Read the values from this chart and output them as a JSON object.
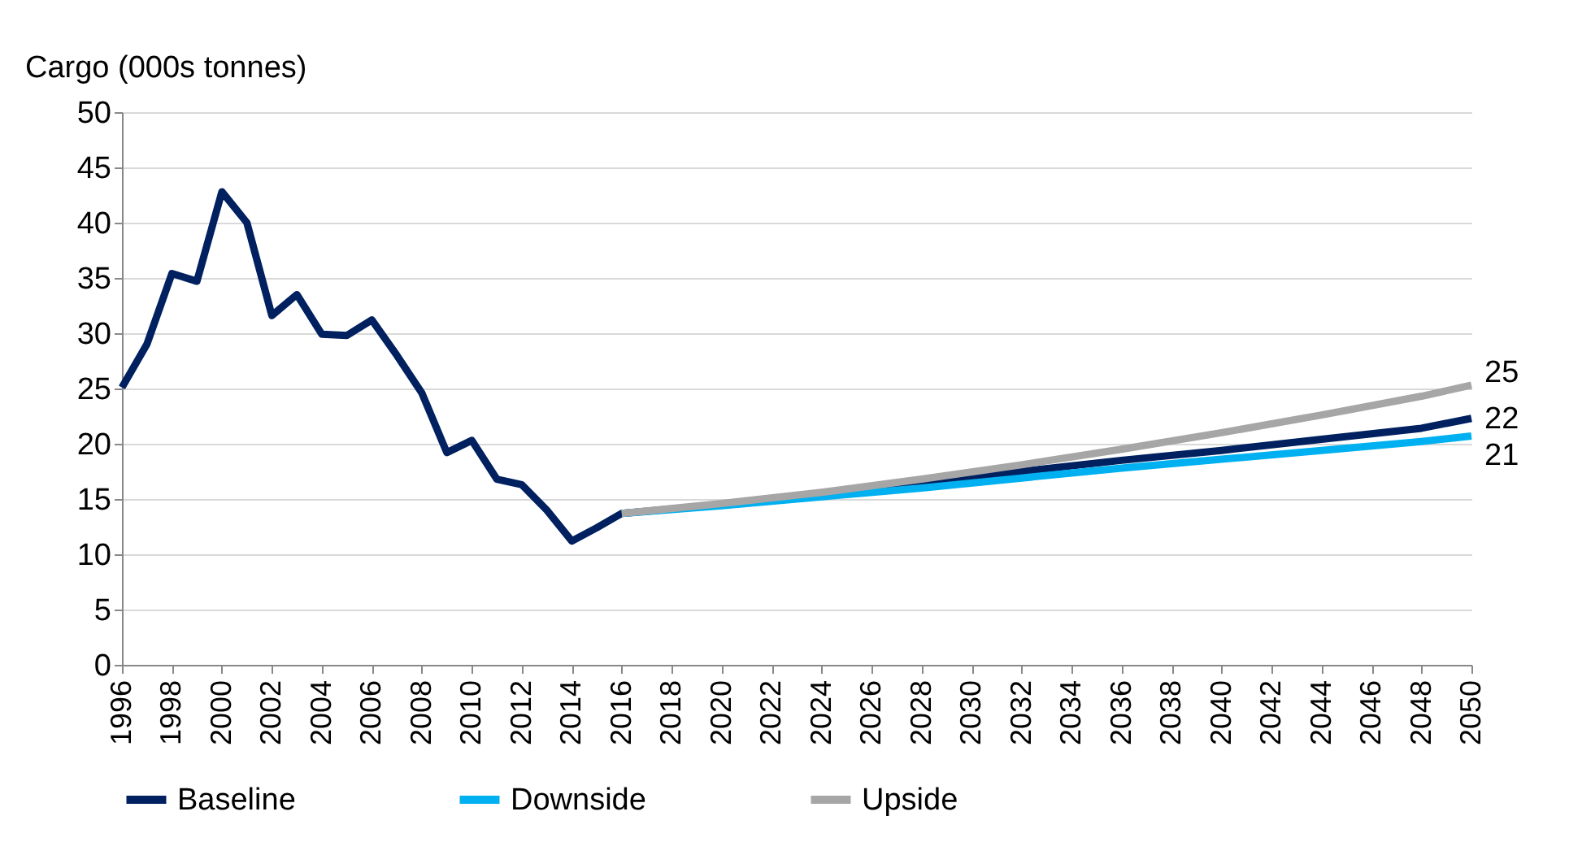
{
  "chart_data": {
    "type": "line",
    "ylabel": "Cargo (000s tonnes)",
    "xlim": [
      1996,
      2050
    ],
    "xticks": [
      1996,
      1998,
      2000,
      2002,
      2004,
      2006,
      2008,
      2010,
      2012,
      2014,
      2016,
      2018,
      2020,
      2022,
      2024,
      2026,
      2028,
      2030,
      2032,
      2034,
      2036,
      2038,
      2040,
      2042,
      2044,
      2046,
      2048,
      2050
    ],
    "ylim": [
      0,
      50
    ],
    "yticks": [
      0,
      5,
      10,
      15,
      20,
      25,
      30,
      35,
      40,
      45,
      50
    ],
    "grid": "y",
    "legend": "bottom",
    "series": [
      {
        "name": "Baseline",
        "color": "#002060",
        "x": [
          1996,
          1997,
          1998,
          1999,
          2000,
          2001,
          2002,
          2003,
          2004,
          2005,
          2006,
          2007,
          2008,
          2009,
          2010,
          2011,
          2012,
          2013,
          2014,
          2015,
          2016,
          2020,
          2024,
          2028,
          2032,
          2036,
          2040,
          2044,
          2048,
          2050
        ],
        "values": [
          25.1,
          29.0,
          35.4,
          34.7,
          42.8,
          40.0,
          31.6,
          33.5,
          29.9,
          29.8,
          31.2,
          28.0,
          24.6,
          19.2,
          20.3,
          16.8,
          16.3,
          14.0,
          11.2,
          12.4,
          13.7,
          14.5,
          15.4,
          16.4,
          17.5,
          18.5,
          19.4,
          20.4,
          21.4,
          22.3
        ],
        "value_labels": [
          null,
          null,
          null,
          null,
          null,
          null,
          null,
          null,
          null,
          null,
          null,
          null,
          null,
          null,
          null,
          null,
          null,
          null,
          null,
          null,
          null,
          null,
          null,
          null,
          null,
          null,
          null,
          null,
          null,
          "22"
        ]
      },
      {
        "name": "Downside",
        "color": "#00b0f0",
        "x": [
          2016,
          2020,
          2024,
          2028,
          2032,
          2036,
          2040,
          2044,
          2048,
          2050
        ],
        "values": [
          13.7,
          14.4,
          15.2,
          16.0,
          16.9,
          17.8,
          18.6,
          19.4,
          20.2,
          20.7
        ],
        "value_labels": [
          null,
          null,
          null,
          null,
          null,
          null,
          null,
          null,
          null,
          "21"
        ]
      },
      {
        "name": "Upside",
        "color": "#a6a6a6",
        "x": [
          2016,
          2020,
          2024,
          2028,
          2032,
          2036,
          2040,
          2044,
          2048,
          2050
        ],
        "values": [
          13.7,
          14.6,
          15.6,
          16.8,
          18.1,
          19.5,
          21.0,
          22.6,
          24.3,
          25.3
        ],
        "value_labels": [
          null,
          null,
          null,
          null,
          null,
          null,
          null,
          null,
          null,
          "25"
        ]
      }
    ]
  }
}
